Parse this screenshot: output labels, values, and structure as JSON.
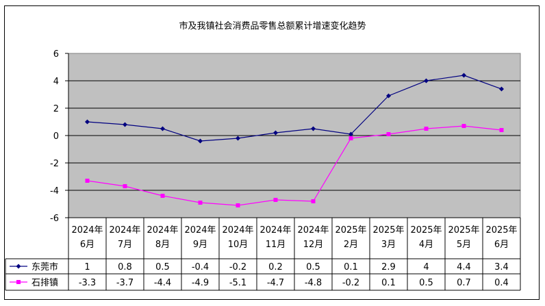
{
  "chart_data": {
    "type": "line",
    "title": "市及我镇社会消费品零售总额累计增速变化趋势",
    "categories": [
      [
        "2024年",
        "6月"
      ],
      [
        "2024年",
        "7月"
      ],
      [
        "2024年",
        "8月"
      ],
      [
        "2024年",
        "9月"
      ],
      [
        "2024年",
        "10月"
      ],
      [
        "2024年",
        "11月"
      ],
      [
        "2024年",
        "12月"
      ],
      [
        "2025年",
        "2月"
      ],
      [
        "2025年",
        "3月"
      ],
      [
        "2025年",
        "4月"
      ],
      [
        "2025年",
        "5月"
      ],
      [
        "2025年",
        "6月"
      ]
    ],
    "series": [
      {
        "name": "东莞市",
        "color": "#000080",
        "marker": "diamond",
        "values": [
          1,
          0.8,
          0.5,
          -0.4,
          -0.2,
          0.2,
          0.5,
          0.1,
          2.9,
          4,
          4.4,
          3.4
        ],
        "labels": [
          "1",
          "0.8",
          "0.5",
          "-0.4",
          "-0.2",
          "0.2",
          "0.5",
          "0.1",
          "2.9",
          "4",
          "4.4",
          "3.4"
        ]
      },
      {
        "name": "石排镇",
        "color": "#ff00ff",
        "marker": "square",
        "values": [
          -3.3,
          -3.7,
          -4.4,
          -4.9,
          -5.1,
          -4.7,
          -4.8,
          -0.2,
          0.1,
          0.5,
          0.7,
          0.4
        ],
        "labels": [
          "-3.3",
          "-3.7",
          "-4.4",
          "-4.9",
          "-5.1",
          "-4.7",
          "-4.8",
          "-0.2",
          "0.1",
          "0.5",
          "0.7",
          "0.4"
        ]
      }
    ],
    "yticks": [
      "6",
      "4",
      "2",
      "0",
      "-2",
      "-4",
      "-6"
    ],
    "ylim": [
      -6,
      6
    ],
    "plot_background": "#c0c0c0",
    "grid": true,
    "data_table": true
  }
}
